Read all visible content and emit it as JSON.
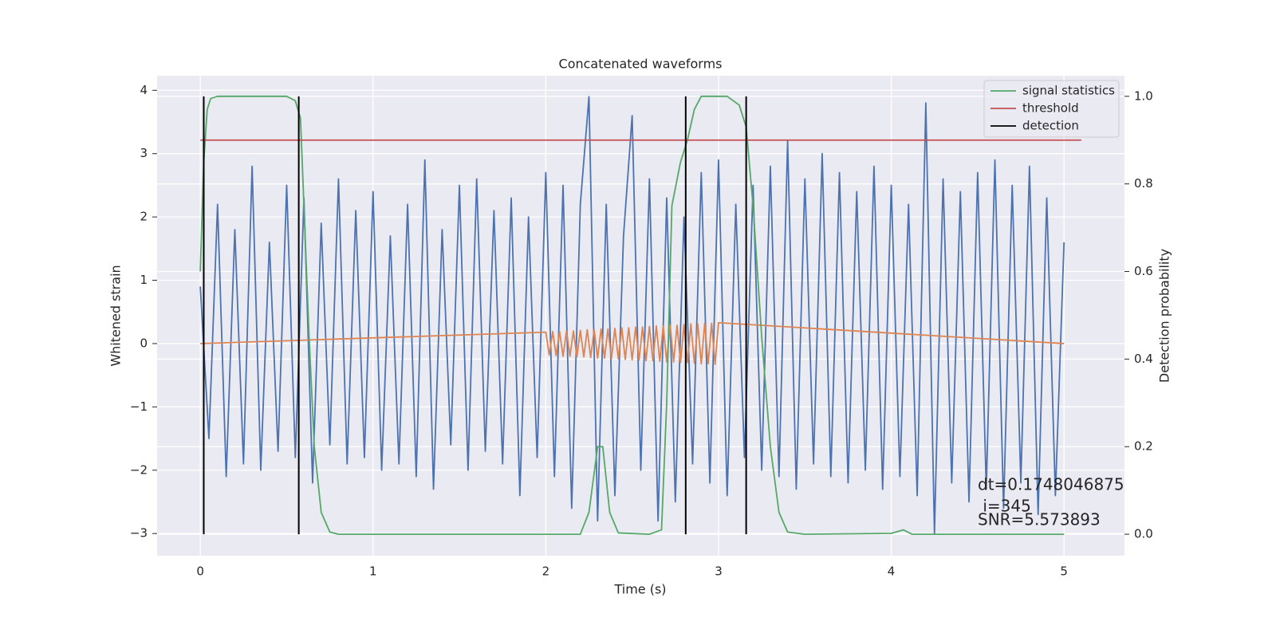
{
  "chart_data": {
    "type": "line",
    "title": "Concatenated waveforms",
    "xlabel": "Time (s)",
    "ylabel": "Whitened strain",
    "y2label": "Detection probability",
    "xlim": [
      -0.25,
      5.35
    ],
    "ylim": [
      -3.35,
      4.23
    ],
    "y2lim": [
      -0.049,
      1.047
    ],
    "xticks": [
      0,
      1,
      2,
      3,
      4,
      5
    ],
    "yticks": [
      {
        "value": -3,
        "label": "−3"
      },
      {
        "value": -2,
        "label": "−2"
      },
      {
        "value": -1,
        "label": "−1"
      },
      0,
      1,
      2,
      3,
      4
    ],
    "y2ticks": [
      {
        "value": 0,
        "label": "0.0"
      },
      {
        "value": 0.2,
        "label": "0.2"
      },
      {
        "value": 0.4,
        "label": "0.4"
      },
      {
        "value": 0.6,
        "label": "0.6"
      },
      {
        "value": 0.8,
        "label": "0.8"
      },
      {
        "value": 1,
        "label": "1.0"
      }
    ],
    "grid": true,
    "legend": "upper right",
    "series": [
      {
        "color": "#4c72b0",
        "x": [
          0,
          0.05,
          0.1,
          0.15,
          0.2,
          0.25,
          0.3,
          0.35,
          0.4,
          0.45,
          0.5,
          0.55,
          0.6,
          0.65,
          0.7,
          0.75,
          0.8,
          0.85,
          0.9,
          0.95,
          1,
          1.05,
          1.1,
          1.15,
          1.2,
          1.25,
          1.3,
          1.35,
          1.4,
          1.45,
          1.5,
          1.55,
          1.6,
          1.65,
          1.7,
          1.75,
          1.8,
          1.85,
          1.9,
          1.95,
          2,
          2.05,
          2.1,
          2.15,
          2.2,
          2.25,
          2.3,
          2.35,
          2.4,
          2.45,
          2.5,
          2.55,
          2.6,
          2.65,
          2.7,
          2.75,
          2.8,
          2.85,
          2.9,
          2.95,
          3,
          3.05,
          3.1,
          3.15,
          3.2,
          3.25,
          3.3,
          3.35,
          3.4,
          3.45,
          3.5,
          3.55,
          3.6,
          3.65,
          3.7,
          3.75,
          3.8,
          3.85,
          3.9,
          3.95,
          4,
          4.05,
          4.1,
          4.15,
          4.2,
          4.25,
          4.3,
          4.35,
          4.4,
          4.45,
          4.5,
          4.55,
          4.6,
          4.65,
          4.7,
          4.75,
          4.8,
          4.85,
          4.9,
          4.95,
          5
        ],
        "values": [
          0.9,
          -1.5,
          2.2,
          -2.1,
          1.8,
          -1.9,
          2.8,
          -2.0,
          1.6,
          -1.7,
          2.5,
          -1.8,
          2.3,
          -2.2,
          1.9,
          -1.6,
          2.6,
          -1.9,
          2.1,
          -1.8,
          2.4,
          -2.0,
          1.7,
          -1.9,
          2.2,
          -2.1,
          2.9,
          -2.3,
          1.8,
          -1.6,
          2.5,
          -2.0,
          2.6,
          -1.7,
          2.1,
          -1.9,
          2.3,
          -2.4,
          2.0,
          -1.8,
          2.7,
          -2.1,
          2.5,
          -2.6,
          2.2,
          3.9,
          -2.8,
          2.2,
          -2.4,
          1.7,
          3.6,
          -2.0,
          2.6,
          -2.8,
          2.3,
          -2.5,
          2.0,
          -1.9,
          2.7,
          -2.2,
          2.9,
          -2.4,
          2.2,
          -1.8,
          2.5,
          -2.0,
          2.8,
          -2.1,
          3.2,
          -2.3,
          2.6,
          -1.9,
          3.0,
          -2.1,
          2.7,
          -2.2,
          2.4,
          -2.0,
          2.8,
          -2.3,
          2.5,
          -2.1,
          2.2,
          -2.4,
          3.8,
          -3.0,
          2.6,
          -2.2,
          2.4,
          -2.5,
          2.7,
          -2.3,
          2.9,
          -2.6,
          2.5,
          -2.2,
          2.8,
          -2.7,
          2.3,
          -2.4,
          1.6
        ]
      },
      {
        "color": "#dd8452",
        "x": [
          0,
          2,
          2.02,
          2.04,
          2.06,
          2.08,
          2.1,
          2.12,
          2.14,
          2.16,
          2.18,
          2.2,
          2.22,
          2.24,
          2.26,
          2.28,
          2.3,
          2.32,
          2.34,
          2.36,
          2.38,
          2.4,
          2.42,
          2.44,
          2.46,
          2.48,
          2.5,
          2.52,
          2.54,
          2.56,
          2.58,
          2.6,
          2.62,
          2.64,
          2.66,
          2.68,
          2.7,
          2.72,
          2.74,
          2.76,
          2.78,
          2.8,
          2.82,
          2.84,
          2.86,
          2.88,
          2.9,
          2.92,
          2.94,
          2.96,
          2.98,
          3,
          5
        ],
        "values": [
          0,
          0.18,
          -0.18,
          0.19,
          -0.19,
          0.19,
          -0.2,
          0.2,
          -0.2,
          0.2,
          -0.21,
          0.21,
          -0.21,
          0.22,
          -0.22,
          0.22,
          -0.23,
          0.23,
          -0.23,
          0.23,
          -0.24,
          0.24,
          -0.24,
          0.25,
          -0.25,
          0.25,
          -0.26,
          0.26,
          -0.26,
          0.26,
          -0.27,
          0.27,
          -0.27,
          0.28,
          -0.28,
          0.28,
          -0.29,
          0.29,
          -0.29,
          0.29,
          -0.3,
          0.3,
          -0.3,
          0.31,
          -0.31,
          0.31,
          -0.32,
          0.32,
          -0.32,
          0.32,
          -0.33,
          0.33,
          0
        ]
      },
      {
        "name": "signal statistics",
        "color": "#55a868",
        "axis": "y2",
        "x": [
          0,
          0.02,
          0.04,
          0.06,
          0.1,
          0.5,
          0.55,
          0.58,
          0.6,
          0.63,
          0.66,
          0.7,
          0.75,
          0.8,
          2.2,
          2.25,
          2.3,
          2.33,
          2.37,
          2.42,
          2.6,
          2.67,
          2.7,
          2.73,
          2.78,
          2.82,
          2.86,
          2.9,
          3.05,
          3.12,
          3.16,
          3.2,
          3.25,
          3.3,
          3.35,
          3.4,
          3.5,
          4.0,
          4.07,
          4.12,
          5.0
        ],
        "values": [
          0.6,
          0.85,
          0.97,
          0.995,
          1.0,
          1.0,
          0.99,
          0.95,
          0.75,
          0.45,
          0.2,
          0.05,
          0.005,
          0,
          0,
          0.05,
          0.2,
          0.2,
          0.05,
          0.003,
          0,
          0.01,
          0.3,
          0.75,
          0.85,
          0.9,
          0.97,
          1.0,
          1.0,
          0.98,
          0.93,
          0.75,
          0.45,
          0.2,
          0.05,
          0.005,
          0,
          0.002,
          0.01,
          0,
          0
        ]
      },
      {
        "name": "threshold",
        "color": "#c44e52",
        "axis": "y2",
        "x": [
          0,
          5.1
        ],
        "values": [
          0.9,
          0.9
        ]
      },
      {
        "name": "detection",
        "color": "#000000",
        "type": "vline",
        "x": [
          0.02,
          0.57,
          2.81,
          3.16
        ]
      }
    ],
    "annotations": [
      "dt=0.1748046875",
      " i=345",
      "SNR=5.573893"
    ]
  }
}
